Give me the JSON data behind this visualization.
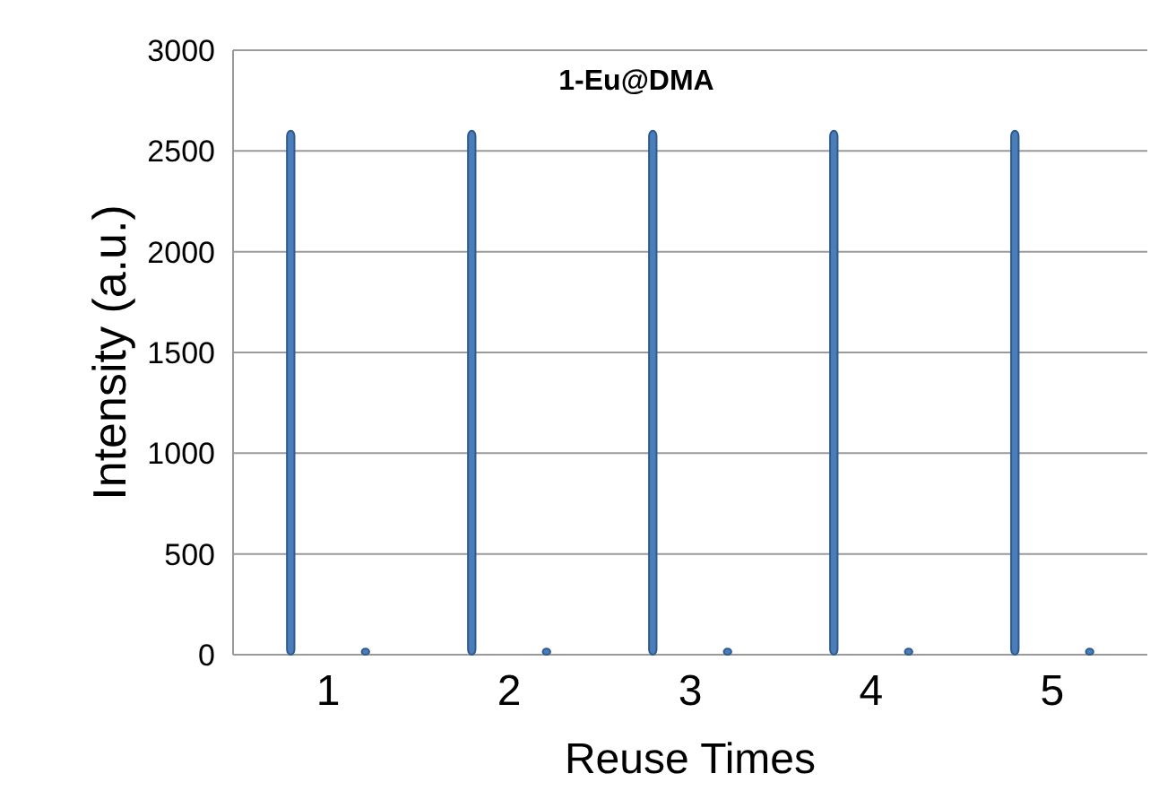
{
  "chart_data": {
    "type": "bar",
    "title": "1-Eu@DMA",
    "xlabel": "Reuse Times",
    "ylabel": "Intensity (a.u.)",
    "categories": [
      "1",
      "2",
      "3",
      "4",
      "5"
    ],
    "series": [
      {
        "color": "#4a7ebb",
        "values": [
          2600,
          2600,
          2600,
          2600,
          2600
        ]
      },
      {
        "color": "#4a7ebb",
        "values": [
          30,
          30,
          30,
          30,
          30
        ]
      }
    ],
    "ylim": [
      0,
      3000
    ],
    "yticks": [
      0,
      500,
      1000,
      1500,
      2000,
      2500,
      3000
    ],
    "grid": "y"
  }
}
